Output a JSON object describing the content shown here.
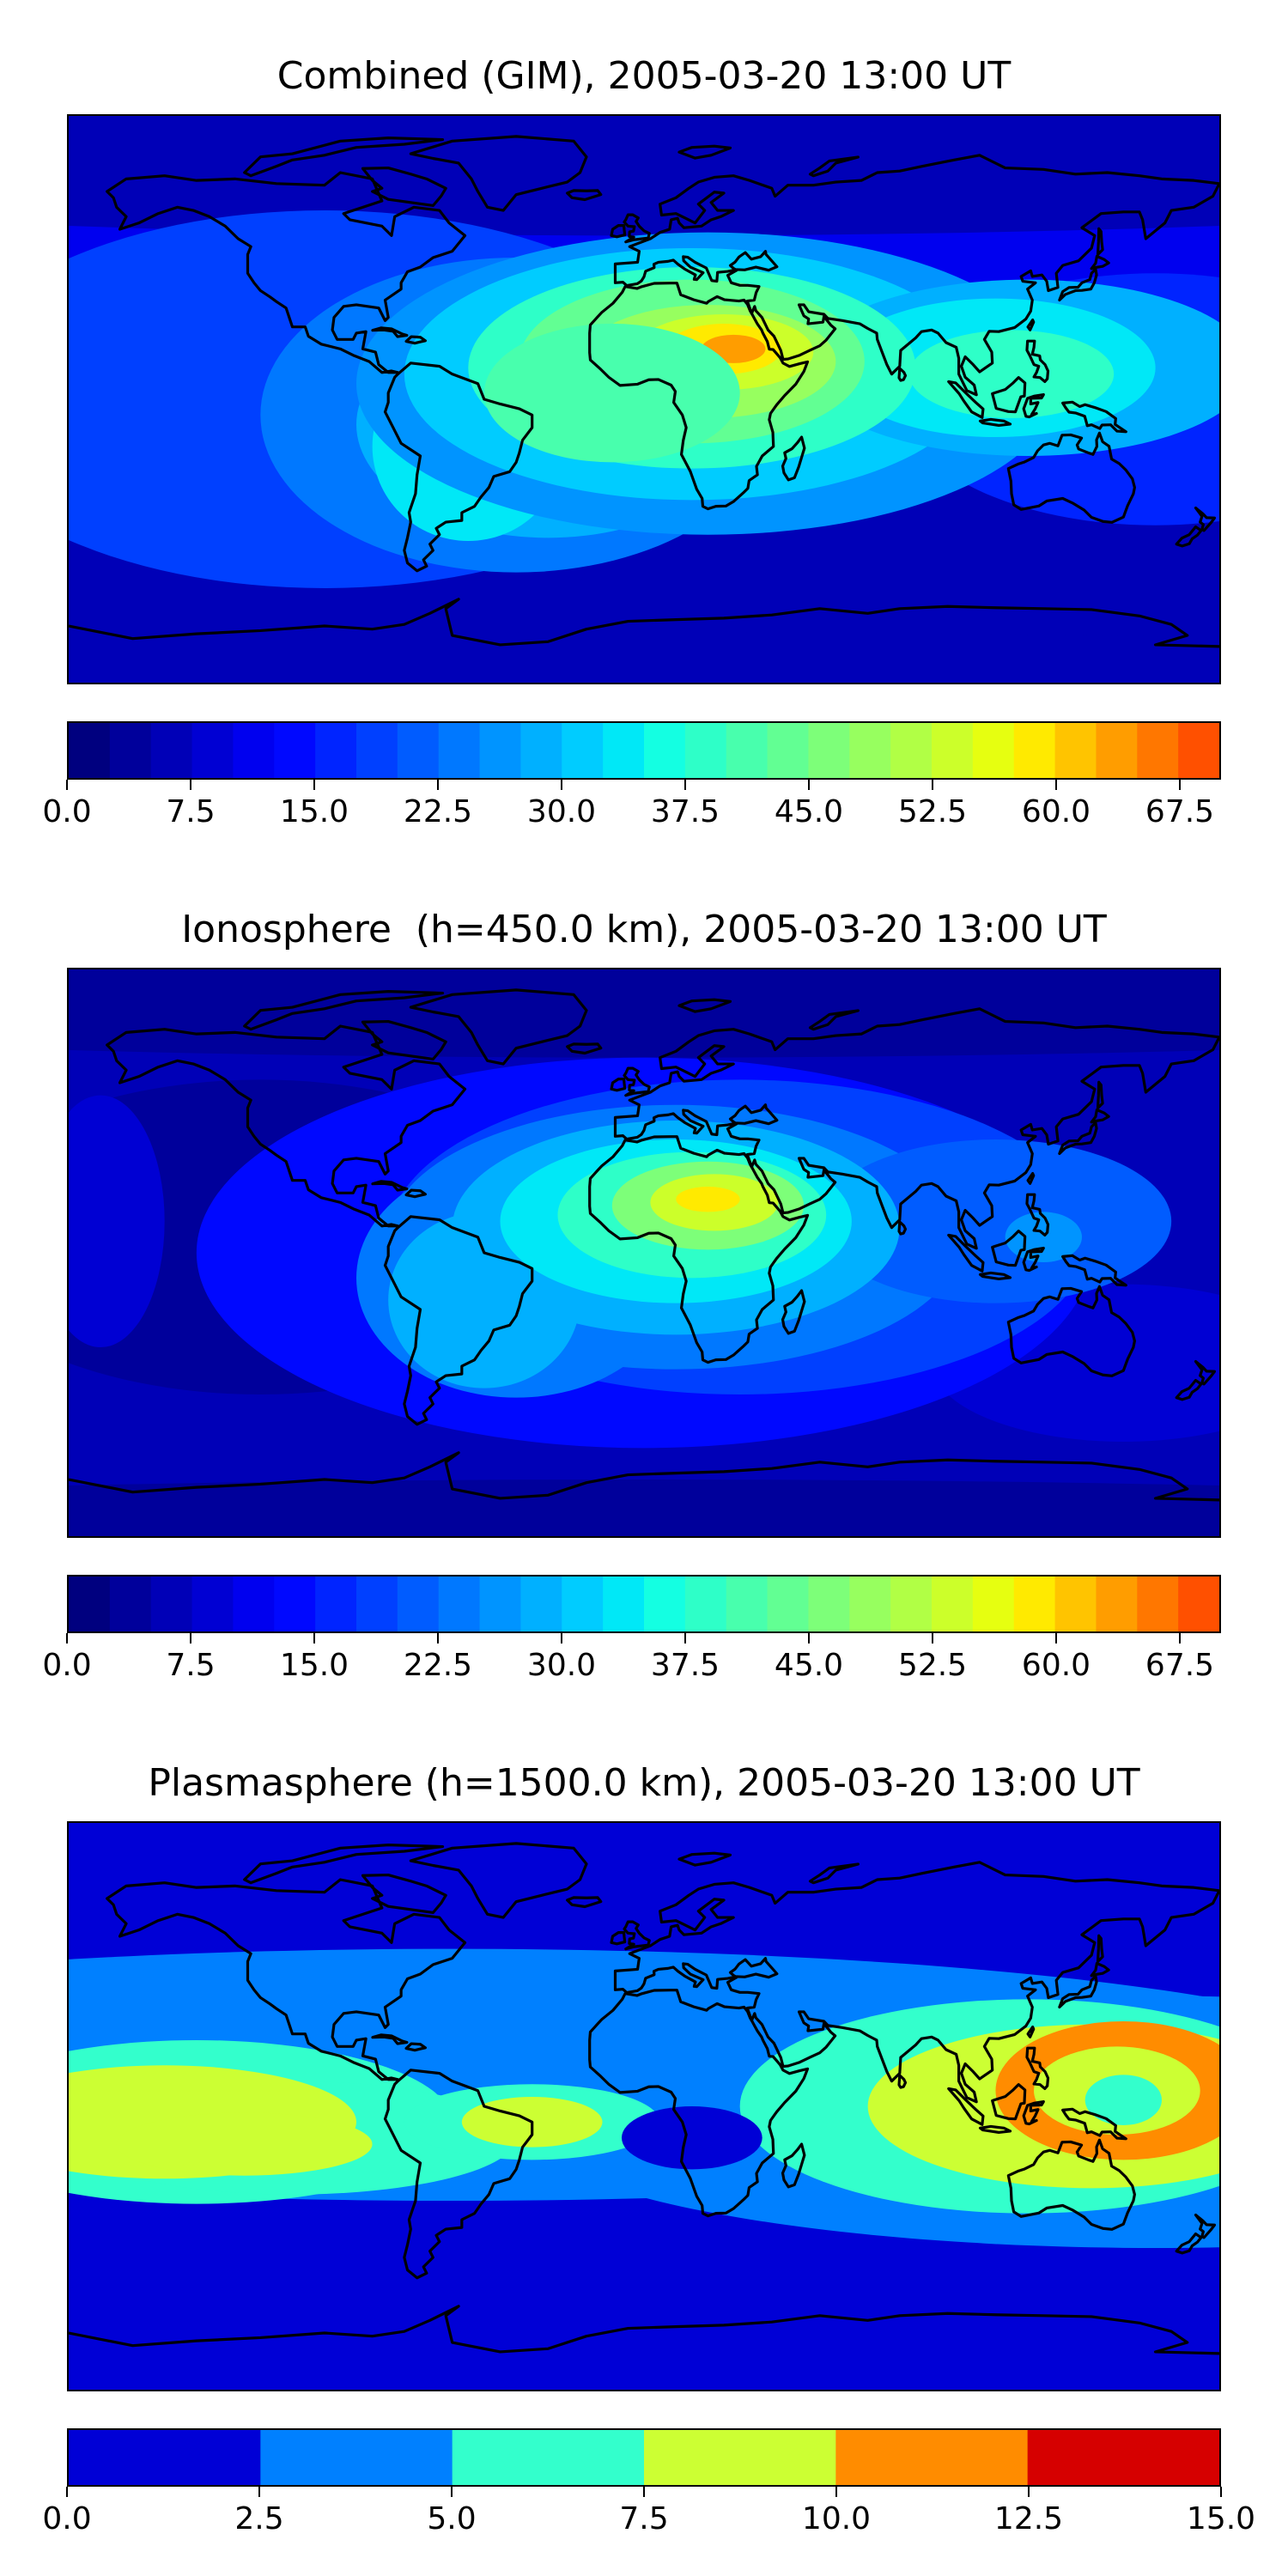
{
  "chart_data": [
    {
      "type": "heatmap",
      "subtype": "filled-contour world map",
      "title": "Combined (GIM), 2005-03-20 13:00 UT",
      "colormap": "jet",
      "colorbar": {
        "orientation": "horizontal",
        "min": 0.0,
        "max": 70.0,
        "levels": 28,
        "step": 2.5,
        "tick_labels": [
          "0.0",
          "7.5",
          "15.0",
          "22.5",
          "30.0",
          "37.5",
          "45.0",
          "52.5",
          "60.0",
          "67.5"
        ]
      },
      "features": [
        {
          "region": "North Africa / Sahara",
          "value": 62.5,
          "note": "maximum"
        },
        {
          "region": "Arabia / Middle East",
          "value": 52.5
        },
        {
          "region": "Southeast Asia / Maritime Continent",
          "value": 37.5
        },
        {
          "region": "South America",
          "value": 35.0
        },
        {
          "region": "Central Atlantic",
          "value": 40.0
        },
        {
          "region": "Pacific Ocean",
          "value": 15.0
        },
        {
          "region": "Polar regions",
          "value": 5.0
        }
      ]
    },
    {
      "type": "heatmap",
      "subtype": "filled-contour world map",
      "title": "Ionosphere  (h=450.0 km), 2005-03-20 13:00 UT",
      "colormap": "jet",
      "colorbar": {
        "orientation": "horizontal",
        "min": 0.0,
        "max": 70.0,
        "levels": 28,
        "step": 2.5,
        "tick_labels": [
          "0.0",
          "7.5",
          "15.0",
          "22.5",
          "30.0",
          "37.5",
          "45.0",
          "52.5",
          "60.0",
          "67.5"
        ]
      },
      "features": [
        {
          "region": "North Africa / Sahara",
          "value": 57.5,
          "note": "maximum"
        },
        {
          "region": "Central Atlantic",
          "value": 35.0
        },
        {
          "region": "Southeast Asia / Maritime Continent",
          "value": 27.5
        },
        {
          "region": "South America",
          "value": 30.0
        },
        {
          "region": "Pacific Ocean",
          "value": 5.0
        },
        {
          "region": "Polar regions",
          "value": 5.0
        }
      ]
    },
    {
      "type": "heatmap",
      "subtype": "filled-contour world map",
      "title": "Plasmasphere (h=1500.0 km), 2005-03-20 13:00 UT",
      "colormap": "jet",
      "colorbar": {
        "orientation": "horizontal",
        "min": 0.0,
        "max": 15.0,
        "levels": 6,
        "step": 2.5,
        "tick_labels": [
          "0.0",
          "2.5",
          "5.0",
          "7.5",
          "10.0",
          "12.5",
          "15.0"
        ]
      },
      "features": [
        {
          "region": "Western Pacific / East Asia",
          "value": 11.25,
          "note": "maximum ring"
        },
        {
          "region": "Eastern Pacific",
          "value": 8.75
        },
        {
          "region": "Tropical belt",
          "value": 6.25
        },
        {
          "region": "West Africa",
          "value": 1.25,
          "note": "local minimum"
        },
        {
          "region": "Polar regions",
          "value": 1.25
        }
      ]
    }
  ],
  "colors": {
    "jet_28": [
      "#00007f",
      "#00009b",
      "#0000b7",
      "#0000d3",
      "#0000ef",
      "#0008ff",
      "#0024ff",
      "#0040ff",
      "#005cff",
      "#0078ff",
      "#0094ff",
      "#00b0ff",
      "#00ccff",
      "#00e8f7",
      "#14ffe2",
      "#2effc8",
      "#48ffad",
      "#62ff93",
      "#7dff79",
      "#97ff5f",
      "#b1ff45",
      "#ccff2a",
      "#e6ff10",
      "#ffea00",
      "#ffc400",
      "#ff9d00",
      "#ff7700",
      "#ff5000"
    ],
    "plasma_6": [
      "#0000d6",
      "#0080ff",
      "#33ffcc",
      "#ccff33",
      "#ff8c00",
      "#d60000"
    ],
    "coastline": "#000000"
  }
}
